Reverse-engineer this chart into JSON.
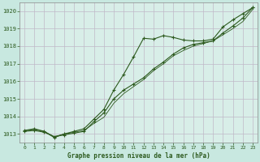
{
  "title": "Graphe pression niveau de la mer (hPa)",
  "background_color": "#c8e8e0",
  "plot_bg_color": "#d8eee8",
  "grid_color": "#c0b8c8",
  "line_color": "#2d5a1e",
  "marker_color": "#2d5a1e",
  "xlim": [
    -0.5,
    23.5
  ],
  "ylim": [
    1012.5,
    1020.5
  ],
  "xticks": [
    0,
    1,
    2,
    3,
    4,
    5,
    6,
    7,
    8,
    9,
    10,
    11,
    12,
    13,
    14,
    15,
    16,
    17,
    18,
    19,
    20,
    21,
    22,
    23
  ],
  "yticks": [
    1013,
    1014,
    1015,
    1016,
    1017,
    1018,
    1019,
    1020
  ],
  "series1_x": [
    0,
    1,
    2,
    3,
    4,
    5,
    6,
    7,
    8,
    9,
    10,
    11,
    12,
    13,
    14,
    15,
    16,
    17,
    18,
    19,
    20,
    21,
    22,
    23
  ],
  "series1_y": [
    1013.2,
    1013.3,
    1013.15,
    1012.8,
    1013.0,
    1013.15,
    1013.3,
    1013.85,
    1014.4,
    1015.5,
    1016.4,
    1017.4,
    1018.45,
    1018.4,
    1018.6,
    1018.5,
    1018.35,
    1018.3,
    1018.3,
    1018.4,
    1019.1,
    1019.5,
    1019.85,
    1020.2
  ],
  "series2_x": [
    0,
    1,
    2,
    3,
    4,
    5,
    6,
    7,
    8,
    9,
    10,
    11,
    12,
    13,
    14,
    15,
    16,
    17,
    18,
    19,
    20,
    21,
    22,
    23
  ],
  "series2_y": [
    1013.15,
    1013.2,
    1013.1,
    1012.85,
    1012.95,
    1013.05,
    1013.15,
    1013.7,
    1014.2,
    1015.0,
    1015.5,
    1015.85,
    1016.2,
    1016.7,
    1017.1,
    1017.55,
    1017.9,
    1018.1,
    1018.2,
    1018.3,
    1018.75,
    1019.15,
    1019.6,
    1020.2
  ],
  "series3_x": [
    0,
    1,
    2,
    3,
    4,
    5,
    6,
    7,
    8,
    9,
    10,
    11,
    12,
    13,
    14,
    15,
    16,
    17,
    18,
    19,
    20,
    21,
    22,
    23
  ],
  "series3_y": [
    1013.2,
    1013.25,
    1013.15,
    1012.85,
    1013.0,
    1013.1,
    1013.2,
    1013.6,
    1013.95,
    1014.75,
    1015.3,
    1015.7,
    1016.1,
    1016.6,
    1017.0,
    1017.45,
    1017.75,
    1018.0,
    1018.15,
    1018.3,
    1018.65,
    1019.0,
    1019.4,
    1020.1
  ]
}
